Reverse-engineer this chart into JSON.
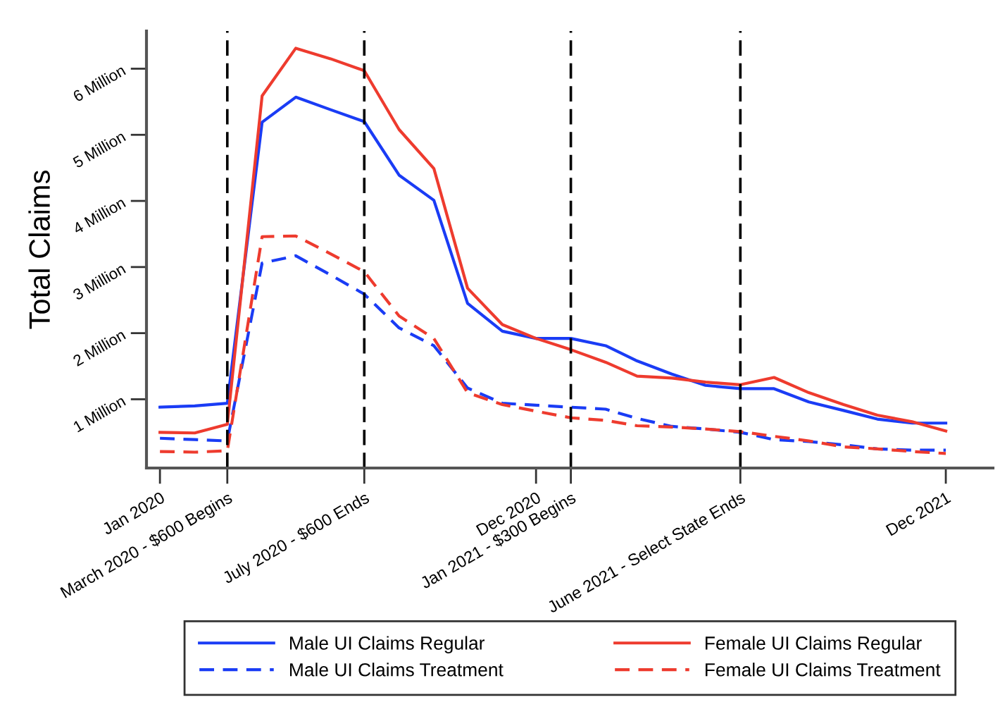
{
  "chart_data": {
    "type": "line",
    "ylabel": "Total Claims",
    "x": [
      "2020-01",
      "2020-02",
      "2020-03",
      "2020-04",
      "2020-05",
      "2020-06",
      "2020-07",
      "2020-08",
      "2020-09",
      "2020-10",
      "2020-11",
      "2020-12",
      "2021-01",
      "2021-02",
      "2021-03",
      "2021-04",
      "2021-05",
      "2021-06",
      "2021-07",
      "2021-08",
      "2021-09",
      "2021-10",
      "2021-11",
      "2021-12"
    ],
    "series": [
      {
        "name": "Male UI Claims Regular",
        "color": "#1a3cf5",
        "line_style": "solid",
        "values": [
          0.88,
          0.9,
          0.94,
          5.19,
          5.57,
          5.38,
          5.2,
          4.39,
          4.01,
          2.45,
          2.03,
          1.92,
          1.92,
          1.81,
          1.58,
          1.38,
          1.21,
          1.16,
          1.16,
          0.96,
          0.83,
          0.7,
          0.64,
          0.64
        ]
      },
      {
        "name": "Female UI Claims Regular",
        "color": "#ee3b2e",
        "line_style": "solid",
        "values": [
          0.5,
          0.49,
          0.62,
          5.59,
          6.31,
          6.15,
          5.97,
          5.08,
          4.49,
          2.68,
          2.13,
          1.92,
          1.75,
          1.56,
          1.35,
          1.32,
          1.26,
          1.22,
          1.33,
          1.1,
          0.92,
          0.76,
          0.66,
          0.52
        ]
      },
      {
        "name": "Male UI Claims Treatment",
        "color": "#1a3cf5",
        "line_style": "dashed",
        "values": [
          0.41,
          0.39,
          0.37,
          3.06,
          3.17,
          2.88,
          2.59,
          2.08,
          1.81,
          1.17,
          0.94,
          0.91,
          0.88,
          0.85,
          0.71,
          0.59,
          0.55,
          0.5,
          0.39,
          0.36,
          0.31,
          0.25,
          0.23,
          0.23
        ]
      },
      {
        "name": "Female UI Claims Treatment",
        "color": "#ee3b2e",
        "line_style": "dashed",
        "values": [
          0.21,
          0.2,
          0.22,
          3.46,
          3.47,
          3.2,
          2.93,
          2.26,
          1.92,
          1.1,
          0.92,
          0.82,
          0.72,
          0.68,
          0.6,
          0.58,
          0.55,
          0.51,
          0.44,
          0.37,
          0.28,
          0.25,
          0.21,
          0.18
        ]
      }
    ],
    "xlim": [
      "2019-12-20",
      "2022-01-12"
    ],
    "xticks": [
      {
        "value": "2020-01",
        "label": "Jan 2020"
      },
      {
        "value": "2020-03",
        "label": "March 2020 - $600 Begins"
      },
      {
        "value": "2020-07",
        "label": "July 2020 - $600 Ends"
      },
      {
        "value": "2020-12",
        "label": "Dec 2020"
      },
      {
        "value": "2021-01",
        "label": "Jan 2021 - $300 Begins"
      },
      {
        "value": "2021-06",
        "label": "June 2021 - Select State Ends"
      },
      {
        "value": "2021-12",
        "label": "Dec 2021"
      }
    ],
    "ylim": [
      -0.04,
      6.57
    ],
    "yticks": [
      {
        "value": 1,
        "label": "1 Million"
      },
      {
        "value": 2,
        "label": "2 Million"
      },
      {
        "value": 3,
        "label": "3 Million"
      },
      {
        "value": 4,
        "label": "4 Million"
      },
      {
        "value": 5,
        "label": "5 Million"
      },
      {
        "value": 6,
        "label": "6 Million"
      }
    ],
    "ref_lines": [
      {
        "axis": "x",
        "value": "2020-03",
        "color": "#000000",
        "line_style": "dashed"
      },
      {
        "axis": "x",
        "value": "2020-07",
        "color": "#000000",
        "line_style": "dashed"
      },
      {
        "axis": "x",
        "value": "2021-01",
        "color": "#000000",
        "line_style": "dashed"
      },
      {
        "axis": "x",
        "value": "2021-06",
        "color": "#000000",
        "line_style": "dashed"
      }
    ],
    "grid": false,
    "legend": "bottom"
  }
}
